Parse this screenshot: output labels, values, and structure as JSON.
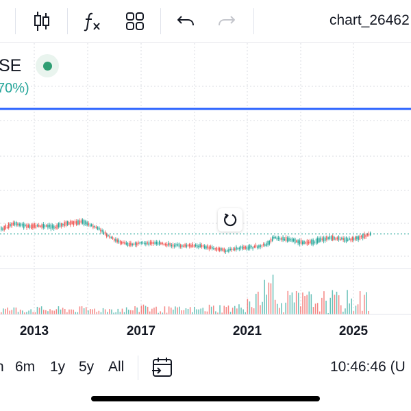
{
  "toolbar": {
    "chart_name": "chart_26462",
    "icons": [
      "candles-icon",
      "function-icon",
      "layout-grid-icon",
      "undo-icon",
      "redo-icon"
    ]
  },
  "legend": {
    "symbol": "SE",
    "change": "70%)",
    "status_color": "#2f9e73"
  },
  "x_axis": {
    "ticks": [
      "2013",
      "2017",
      "2021",
      "2025"
    ]
  },
  "range_selector": {
    "items": [
      "n",
      "6m",
      "1y",
      "5y",
      "All"
    ]
  },
  "clock": "10:46:46 (U",
  "colors": {
    "up": "#26a69a",
    "down": "#ef5350",
    "last_price_line": "#26a69a",
    "blue_line": "#2962ff",
    "grid": "#d9dbe0"
  }
}
